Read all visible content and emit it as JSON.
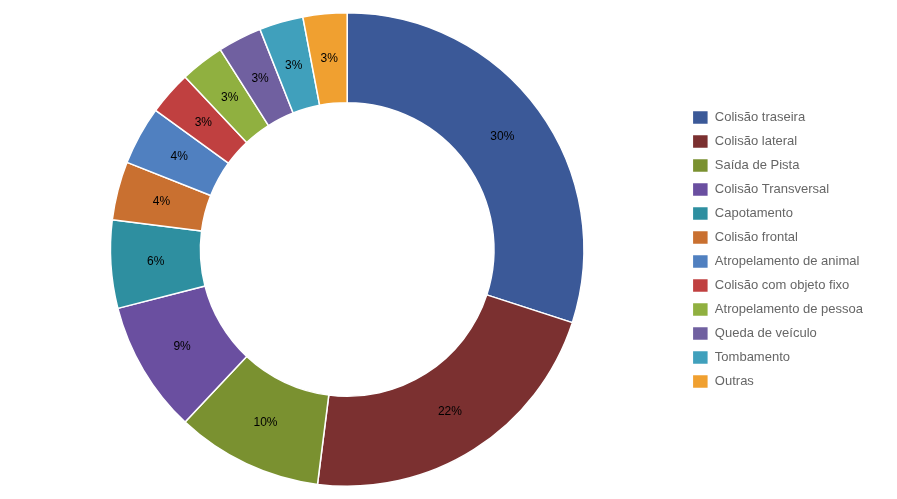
{
  "chart_data": {
    "type": "doughnut",
    "categories": [
      "Colisão traseira",
      "Colisão lateral",
      "Saída de Pista",
      "Colisão Transversal",
      "Capotamento",
      "Colisão frontal",
      "Atropelamento de animal",
      "Colisão com objeto fixo",
      "Atropelamento de pessoa",
      "Queda de veículo",
      "Tombamento",
      "Outras"
    ],
    "values": [
      30,
      22,
      10,
      9,
      6,
      4,
      4,
      3,
      3,
      3,
      3,
      3
    ],
    "value_labels": [
      "30%",
      "22%",
      "10%",
      "9%",
      "6%",
      "4%",
      "4%",
      "3%",
      "3%",
      "3%",
      "3%",
      "3%"
    ],
    "colors": [
      "#3B5998",
      "#7B3030",
      "#7A9130",
      "#6A4FA0",
      "#2E8FA0",
      "#C97030",
      "#5080C0",
      "#C04040",
      "#90B040",
      "#7060A0",
      "#40A0BC",
      "#F0A030"
    ],
    "data_labels": true,
    "legend": "right"
  }
}
